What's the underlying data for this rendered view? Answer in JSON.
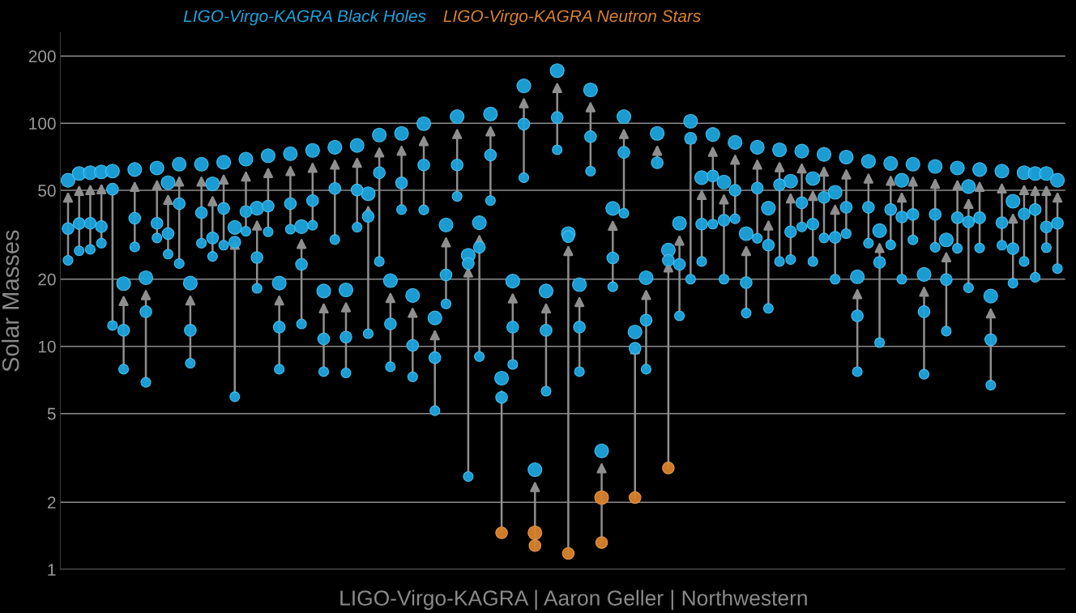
{
  "chart_data": {
    "type": "scatter",
    "log": "y",
    "ylabel": "Solar Masses",
    "ylim": [
      1,
      255
    ],
    "yticks": [
      1,
      2,
      5,
      10,
      20,
      50,
      100,
      200
    ],
    "grid": "y",
    "tick_labels": "y",
    "legend": "top",
    "marker": "circle",
    "annotations": [
      "LIGO-Virgo-KAGRA | Aaron Geller | Northwestern"
    ],
    "categories": [
      null,
      null,
      null,
      null,
      null,
      null,
      null,
      null,
      null,
      null,
      null,
      null,
      null,
      null,
      null,
      null,
      null,
      null,
      null,
      null,
      null,
      null,
      null,
      null,
      null,
      null,
      null,
      null,
      null,
      null,
      null,
      null,
      null,
      null,
      null,
      null,
      null,
      null,
      null,
      null,
      null,
      null,
      null,
      null,
      null,
      null,
      null,
      null,
      null,
      null,
      null,
      null,
      null,
      null,
      null,
      null,
      null,
      null,
      null,
      null,
      null,
      null,
      null,
      null,
      null,
      null,
      null,
      null,
      null,
      null,
      null,
      null,
      null,
      null,
      null,
      null,
      null,
      null,
      null,
      null,
      null,
      null,
      null,
      null,
      null,
      null,
      null,
      null,
      null,
      null
    ],
    "series": [
      {
        "name": "LIGO-Virgo-KAGRA Black Holes",
        "color": "#1ba3dd",
        "values": [
          55.5,
          59.5,
          60,
          60.5,
          61,
          19.1,
          62,
          20.3,
          63,
          54.2,
          65.5,
          19.2,
          65.5,
          53.5,
          66.8,
          34.1,
          69,
          41.6,
          71.5,
          19.2,
          73,
          34.4,
          75.5,
          17.7,
          78,
          17.9,
          79.5,
          48.3,
          88.5,
          19.7,
          90,
          16.9,
          99.5,
          13.4,
          35,
          107,
          25.6,
          35.8,
          110,
          7.2,
          19.6,
          147,
          2.8,
          17.7,
          172,
          32,
          18.9,
          141,
          3.4,
          41.5,
          107,
          11.6,
          20.3,
          90,
          27,
          35.6,
          102,
          57,
          89,
          54.5,
          82,
          32,
          78,
          41.6,
          76,
          55,
          75,
          56.5,
          72.5,
          49,
          70.5,
          20.5,
          67.5,
          33,
          66,
          55.5,
          65.5,
          21,
          64,
          30,
          63,
          52,
          62,
          16.8,
          61,
          44.7,
          60,
          59.5,
          59.5,
          55.5
        ]
      },
      {
        "color": "#1ba3dd",
        "values": [
          33.7,
          35.5,
          35.6,
          34.4,
          50.6,
          11.8,
          37.5,
          14.3,
          35.6,
          32,
          43.6,
          11.8,
          39.7,
          30.6,
          41.5,
          29.3,
          40.2,
          25,
          42.5,
          12.2,
          43.6,
          23.3,
          45,
          10.8,
          51,
          11,
          50.2,
          38.2,
          60,
          12.6,
          54,
          10.1,
          65,
          8.9,
          20.9,
          65,
          23.5,
          27.8,
          72,
          5.9,
          12.2,
          99,
          null,
          11.8,
          106,
          31,
          12.2,
          87,
          null,
          24.9,
          74,
          9.8,
          13.1,
          66.5,
          24.3,
          23.3,
          85.5,
          35.3,
          58,
          36.7,
          50,
          19.3,
          51.2,
          28.4,
          53,
          32.6,
          44,
          35.3,
          46.5,
          30.8,
          42,
          13.7,
          42,
          23.8,
          41,
          38,
          39,
          14.3,
          39,
          19.9,
          37.7,
          36.1,
          37.7,
          10.7,
          35.8,
          27.4,
          39.2,
          41,
          34.3,
          35.6
        ]
      },
      {
        "color": "#1ba3dd",
        "values": [
          24.3,
          26.8,
          27.2,
          29,
          12.4,
          7.9,
          27.9,
          6.9,
          30.6,
          25.9,
          23.5,
          8.4,
          29,
          25.3,
          28.4,
          5.95,
          32.8,
          18.2,
          32.6,
          7.9,
          33.5,
          12.6,
          34.9,
          7.7,
          30.1,
          7.6,
          34.2,
          11.4,
          24,
          8.1,
          41,
          7.3,
          40.9,
          5.15,
          15.5,
          47,
          2.61,
          9.0,
          45,
          null,
          8.3,
          57,
          null,
          6.3,
          76,
          null,
          7.7,
          61,
          null,
          18.5,
          39.5,
          null,
          7.9,
          null,
          null,
          13.7,
          20,
          24,
          35.3,
          20,
          37.3,
          14.1,
          30.5,
          14.8,
          24,
          24.5,
          34.3,
          24,
          30.6,
          20,
          32,
          7.7,
          29,
          10.4,
          28.5,
          20,
          30,
          7.5,
          27.8,
          11.7,
          27.5,
          18.3,
          27.6,
          6.7,
          28.4,
          19.2,
          24,
          20.4,
          27.7,
          22.3
        ]
      },
      {
        "name": "LIGO-Virgo-KAGRA Neutron Stars",
        "color": "#d9822b",
        "values": [
          null,
          null,
          null,
          null,
          null,
          null,
          null,
          null,
          null,
          null,
          null,
          null,
          null,
          null,
          null,
          null,
          null,
          null,
          null,
          null,
          null,
          null,
          null,
          null,
          null,
          null,
          null,
          null,
          null,
          null,
          null,
          null,
          null,
          null,
          null,
          null,
          null,
          null,
          null,
          null,
          null,
          null,
          1.46,
          null,
          null,
          null,
          null,
          null,
          2.1,
          null,
          null,
          null,
          null,
          null,
          null,
          null,
          null,
          null,
          null,
          null,
          null,
          null,
          null,
          null,
          null,
          null,
          null,
          null,
          null,
          null,
          null,
          null,
          null,
          null,
          null,
          null,
          null,
          null,
          null,
          null,
          null,
          null,
          null,
          null,
          null,
          null,
          null,
          null,
          null,
          null
        ]
      },
      {
        "color": "#d9822b",
        "values": [
          null,
          null,
          null,
          null,
          null,
          null,
          null,
          null,
          null,
          null,
          null,
          null,
          null,
          null,
          null,
          null,
          null,
          null,
          null,
          null,
          null,
          null,
          null,
          null,
          null,
          null,
          null,
          null,
          null,
          null,
          null,
          null,
          null,
          null,
          null,
          null,
          null,
          null,
          null,
          1.46,
          null,
          null,
          1.28,
          null,
          null,
          1.18,
          null,
          null,
          1.32,
          null,
          null,
          2.1,
          null,
          null,
          2.85,
          null,
          null,
          null,
          null,
          null,
          null,
          null,
          null,
          null,
          null,
          null,
          null,
          null,
          null,
          null,
          null,
          null,
          null,
          null,
          null,
          null,
          null,
          null,
          null,
          null,
          null,
          null,
          null,
          null,
          null,
          null,
          null,
          null,
          null,
          null
        ]
      }
    ]
  }
}
